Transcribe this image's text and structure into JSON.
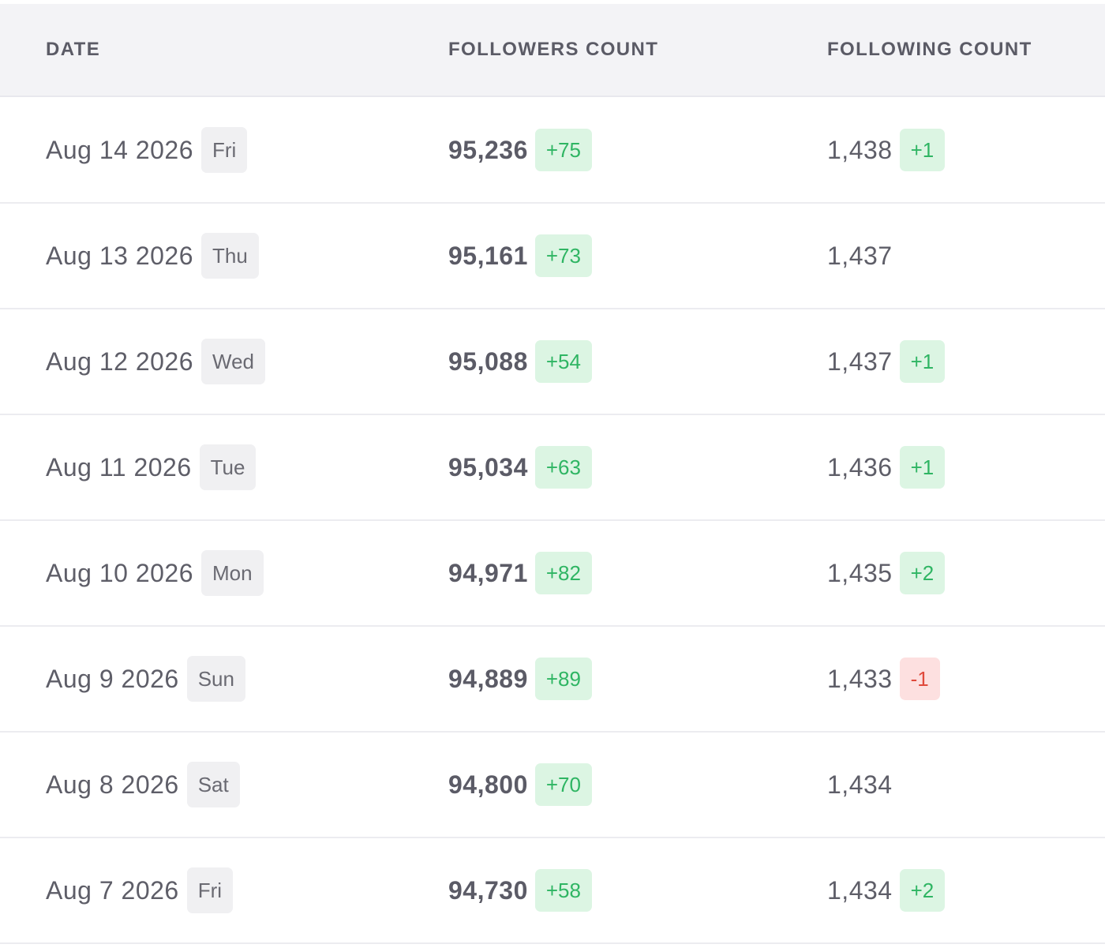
{
  "columns": {
    "date": "DATE",
    "followers": "FOLLOWERS COUNT",
    "following": "FOLLOWING COUNT"
  },
  "colors": {
    "header_bg": "#f3f3f6",
    "positive_bg": "#dcf5e3",
    "positive_text": "#2fb563",
    "negative_bg": "#fde0e0",
    "negative_text": "#e04a3c"
  },
  "rows": [
    {
      "date": "Aug 14 2026",
      "day": "Fri",
      "followers": "95,236",
      "followers_delta": "+75",
      "following": "1,438",
      "following_delta": "+1",
      "following_delta_type": "pos"
    },
    {
      "date": "Aug 13 2026",
      "day": "Thu",
      "followers": "95,161",
      "followers_delta": "+73",
      "following": "1,437",
      "following_delta": "",
      "following_delta_type": "empty"
    },
    {
      "date": "Aug 12 2026",
      "day": "Wed",
      "followers": "95,088",
      "followers_delta": "+54",
      "following": "1,437",
      "following_delta": "+1",
      "following_delta_type": "pos"
    },
    {
      "date": "Aug 11 2026",
      "day": "Tue",
      "followers": "95,034",
      "followers_delta": "+63",
      "following": "1,436",
      "following_delta": "+1",
      "following_delta_type": "pos"
    },
    {
      "date": "Aug 10 2026",
      "day": "Mon",
      "followers": "94,971",
      "followers_delta": "+82",
      "following": "1,435",
      "following_delta": "+2",
      "following_delta_type": "pos"
    },
    {
      "date": "Aug 9 2026",
      "day": "Sun",
      "followers": "94,889",
      "followers_delta": "+89",
      "following": "1,433",
      "following_delta": "-1",
      "following_delta_type": "neg"
    },
    {
      "date": "Aug 8 2026",
      "day": "Sat",
      "followers": "94,800",
      "followers_delta": "+70",
      "following": "1,434",
      "following_delta": "",
      "following_delta_type": "empty"
    },
    {
      "date": "Aug 7 2026",
      "day": "Fri",
      "followers": "94,730",
      "followers_delta": "+58",
      "following": "1,434",
      "following_delta": "+2",
      "following_delta_type": "pos"
    }
  ]
}
